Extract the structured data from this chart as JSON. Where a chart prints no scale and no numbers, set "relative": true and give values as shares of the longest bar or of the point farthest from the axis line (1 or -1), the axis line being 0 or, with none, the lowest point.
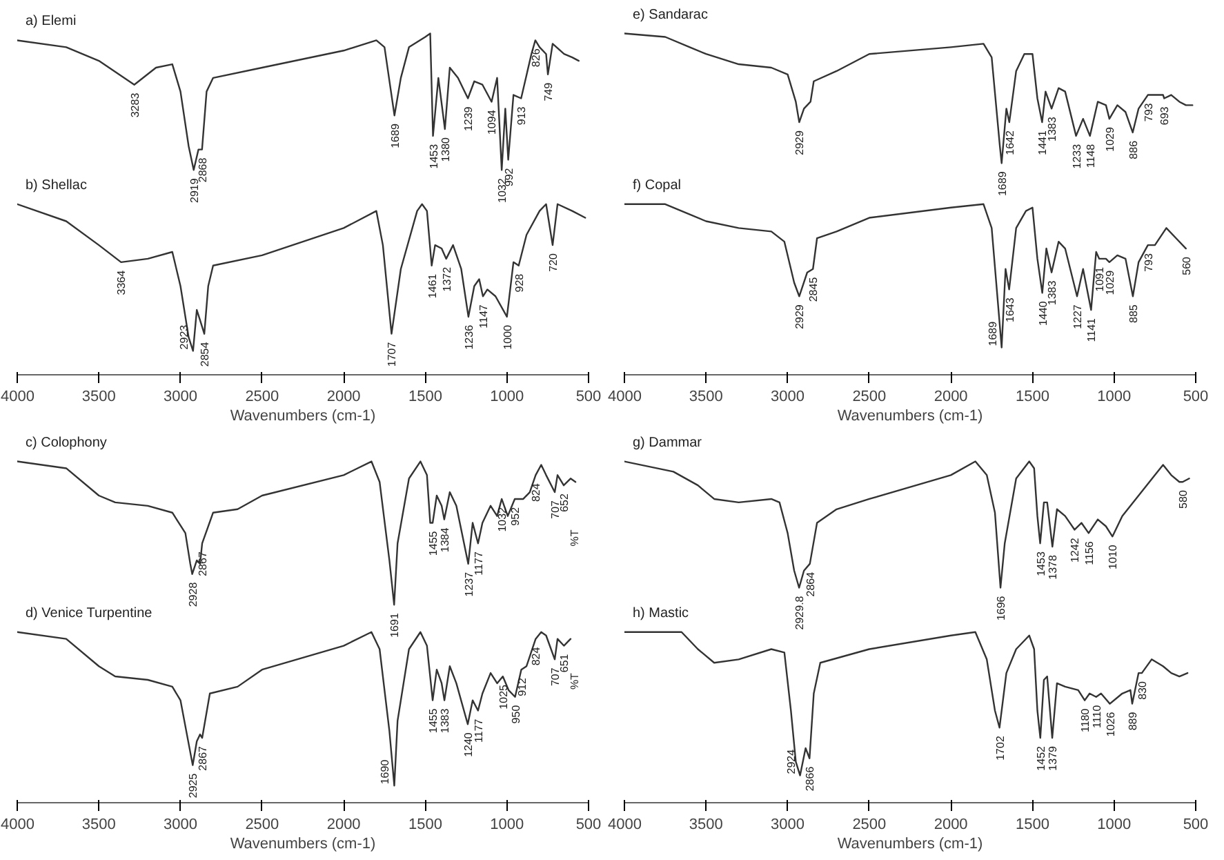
{
  "chart_data": [
    {
      "type": "line",
      "relative": true,
      "xlabel": "Wavenumbers (cm-1)",
      "xlim": [
        4000,
        500
      ],
      "xticks": [
        4000,
        3500,
        3000,
        2500,
        2000,
        1500,
        1000,
        500
      ],
      "grid": false,
      "marker": "none",
      "line_style": "solid",
      "series": [
        {
          "name": "a) Elemi",
          "color": "#333333",
          "x": [
            4000,
            3700,
            3500,
            3283,
            3150,
            3050,
            3000,
            2950,
            2919,
            2890,
            2868,
            2840,
            2800,
            2500,
            2000,
            1800,
            1750,
            1689,
            1650,
            1600,
            1500,
            1470,
            1453,
            1420,
            1380,
            1350,
            1300,
            1239,
            1200,
            1150,
            1094,
            1060,
            1032,
            1010,
            992,
            960,
            913,
            850,
            826,
            800,
            760,
            749,
            720,
            650,
            600,
            560
          ],
          "values": [
            0.98,
            0.96,
            0.92,
            0.85,
            0.9,
            0.91,
            0.83,
            0.67,
            0.6,
            0.66,
            0.66,
            0.83,
            0.87,
            0.9,
            0.95,
            0.98,
            0.96,
            0.76,
            0.87,
            0.96,
            0.99,
            1.0,
            0.7,
            0.87,
            0.72,
            0.9,
            0.87,
            0.81,
            0.86,
            0.85,
            0.8,
            0.87,
            0.6,
            0.78,
            0.63,
            0.82,
            0.81,
            0.94,
            0.98,
            0.96,
            0.94,
            0.88,
            0.97,
            0.94,
            0.93,
            0.92
          ]
        },
        {
          "name": "b) Shellac",
          "color": "#333333",
          "x": [
            4000,
            3700,
            3500,
            3364,
            3200,
            3050,
            3000,
            2950,
            2923,
            2900,
            2880,
            2854,
            2830,
            2800,
            2500,
            2000,
            1800,
            1760,
            1707,
            1650,
            1550,
            1520,
            1490,
            1461,
            1440,
            1400,
            1372,
            1330,
            1280,
            1236,
            1200,
            1170,
            1147,
            1120,
            1070,
            1000,
            960,
            928,
            880,
            800,
            760,
            720,
            690,
            600,
            520
          ],
          "values": [
            0.5,
            0.45,
            0.38,
            0.33,
            0.34,
            0.36,
            0.26,
            0.11,
            0.07,
            0.19,
            0.16,
            0.12,
            0.26,
            0.32,
            0.35,
            0.43,
            0.48,
            0.38,
            0.12,
            0.31,
            0.48,
            0.5,
            0.48,
            0.32,
            0.38,
            0.37,
            0.34,
            0.38,
            0.31,
            0.17,
            0.26,
            0.28,
            0.23,
            0.25,
            0.23,
            0.17,
            0.33,
            0.32,
            0.41,
            0.48,
            0.5,
            0.38,
            0.5,
            0.48,
            0.46
          ]
        }
      ],
      "annotations": [
        {
          "text": "3283",
          "x": 3283,
          "y": 0.85
        },
        {
          "text": "2919",
          "x": 2919,
          "y": 0.6
        },
        {
          "text": "2868",
          "x": 2868,
          "y": 0.66
        },
        {
          "text": "1689",
          "x": 1689,
          "y": 0.76
        },
        {
          "text": "1453",
          "x": 1453,
          "y": 0.7
        },
        {
          "text": "1380",
          "x": 1380,
          "y": 0.72
        },
        {
          "text": "1239",
          "x": 1239,
          "y": 0.81
        },
        {
          "text": "1094",
          "x": 1094,
          "y": 0.8
        },
        {
          "text": "1032",
          "x": 1032,
          "y": 0.6
        },
        {
          "text": "992",
          "x": 992,
          "y": 0.63
        },
        {
          "text": "913",
          "x": 913,
          "y": 0.81
        },
        {
          "text": "826",
          "x": 826,
          "y": 0.98
        },
        {
          "text": "749",
          "x": 749,
          "y": 0.88
        },
        {
          "text": "3364",
          "x": 3364,
          "y": 0.33
        },
        {
          "text": "2923",
          "x": 2923,
          "y": 0.07
        },
        {
          "text": "2854",
          "x": 2854,
          "y": 0.12
        },
        {
          "text": "1707",
          "x": 1707,
          "y": 0.12
        },
        {
          "text": "1461",
          "x": 1461,
          "y": 0.32
        },
        {
          "text": "1372",
          "x": 1372,
          "y": 0.34
        },
        {
          "text": "1236",
          "x": 1236,
          "y": 0.17
        },
        {
          "text": "1147",
          "x": 1147,
          "y": 0.23
        },
        {
          "text": "1000",
          "x": 1000,
          "y": 0.17
        },
        {
          "text": "928",
          "x": 928,
          "y": 0.32
        },
        {
          "text": "720",
          "x": 720,
          "y": 0.38
        }
      ]
    },
    {
      "type": "line",
      "relative": true,
      "xlabel": "Wavenumbers (cm-1)",
      "xlim": [
        4000,
        500
      ],
      "xticks": [
        4000,
        3500,
        3000,
        2500,
        2000,
        1500,
        1000,
        500
      ],
      "grid": false,
      "marker": "none",
      "line_style": "solid",
      "series": [
        {
          "name": "e) Sandarac",
          "color": "#333333",
          "x": [
            4000,
            3750,
            3600,
            3500,
            3300,
            3100,
            3000,
            2950,
            2929,
            2900,
            2860,
            2840,
            2700,
            2500,
            2000,
            1800,
            1750,
            1700,
            1689,
            1660,
            1642,
            1600,
            1550,
            1500,
            1470,
            1441,
            1420,
            1383,
            1340,
            1300,
            1233,
            1190,
            1148,
            1100,
            1050,
            1029,
            980,
            930,
            886,
            850,
            793,
            750,
            700,
            693,
            650,
            600,
            560,
            520
          ],
          "values": [
            1.0,
            0.99,
            0.96,
            0.94,
            0.91,
            0.9,
            0.88,
            0.8,
            0.74,
            0.78,
            0.8,
            0.86,
            0.89,
            0.94,
            0.96,
            0.97,
            0.93,
            0.67,
            0.62,
            0.78,
            0.74,
            0.89,
            0.94,
            0.94,
            0.81,
            0.74,
            0.83,
            0.78,
            0.84,
            0.83,
            0.7,
            0.75,
            0.7,
            0.8,
            0.79,
            0.75,
            0.79,
            0.77,
            0.71,
            0.78,
            0.82,
            0.82,
            0.82,
            0.81,
            0.82,
            0.8,
            0.79,
            0.79
          ]
        },
        {
          "name": "f) Copal",
          "color": "#333333",
          "x": [
            4000,
            3750,
            3600,
            3500,
            3300,
            3100,
            3020,
            2960,
            2929,
            2880,
            2845,
            2820,
            2700,
            2500,
            2000,
            1800,
            1750,
            1689,
            1665,
            1643,
            1600,
            1540,
            1500,
            1470,
            1440,
            1415,
            1383,
            1340,
            1300,
            1227,
            1190,
            1141,
            1110,
            1091,
            1050,
            1029,
            980,
            930,
            885,
            850,
            793,
            750,
            680,
            620,
            560
          ],
          "values": [
            0.5,
            0.5,
            0.47,
            0.45,
            0.43,
            0.42,
            0.39,
            0.27,
            0.23,
            0.3,
            0.31,
            0.4,
            0.42,
            0.46,
            0.49,
            0.5,
            0.43,
            0.08,
            0.31,
            0.25,
            0.43,
            0.48,
            0.49,
            0.34,
            0.24,
            0.37,
            0.3,
            0.39,
            0.37,
            0.23,
            0.31,
            0.19,
            0.36,
            0.34,
            0.34,
            0.33,
            0.35,
            0.34,
            0.23,
            0.33,
            0.38,
            0.38,
            0.43,
            0.4,
            0.37
          ]
        }
      ],
      "annotations": [
        {
          "text": "2929",
          "x": 2929,
          "y": 0.74
        },
        {
          "text": "1689",
          "x": 1689,
          "y": 0.62
        },
        {
          "text": "1642",
          "x": 1642,
          "y": 0.74
        },
        {
          "text": "1441",
          "x": 1441,
          "y": 0.74
        },
        {
          "text": "1383",
          "x": 1383,
          "y": 0.78
        },
        {
          "text": "1233",
          "x": 1233,
          "y": 0.7
        },
        {
          "text": "1148",
          "x": 1148,
          "y": 0.7
        },
        {
          "text": "1029",
          "x": 1029,
          "y": 0.75
        },
        {
          "text": "886",
          "x": 886,
          "y": 0.71
        },
        {
          "text": "793",
          "x": 793,
          "y": 0.82
        },
        {
          "text": "693",
          "x": 693,
          "y": 0.81
        },
        {
          "text": "2929",
          "x": 2929,
          "y": 0.23
        },
        {
          "text": "2845",
          "x": 2845,
          "y": 0.31
        },
        {
          "text": "1689",
          "x": 1689,
          "y": 0.08
        },
        {
          "text": "1643",
          "x": 1643,
          "y": 0.25
        },
        {
          "text": "1440",
          "x": 1440,
          "y": 0.24
        },
        {
          "text": "1383",
          "x": 1383,
          "y": 0.3
        },
        {
          "text": "1227",
          "x": 1227,
          "y": 0.23
        },
        {
          "text": "1141",
          "x": 1141,
          "y": 0.19
        },
        {
          "text": "1091",
          "x": 1091,
          "y": 0.34
        },
        {
          "text": "1029",
          "x": 1029,
          "y": 0.33
        },
        {
          "text": "885",
          "x": 885,
          "y": 0.23
        },
        {
          "text": "793",
          "x": 793,
          "y": 0.38
        },
        {
          "text": "560",
          "x": 560,
          "y": 0.37
        }
      ]
    },
    {
      "type": "line",
      "relative": true,
      "xlabel": "Wavenumbers (cm-1)",
      "xlim": [
        4000,
        500
      ],
      "xticks": [
        4000,
        3500,
        3000,
        2500,
        2000,
        1500,
        1000,
        500
      ],
      "grid": false,
      "marker": "none",
      "line_style": "solid",
      "series": [
        {
          "name": "c) Colophony",
          "color": "#333333",
          "x": [
            4000,
            3700,
            3500,
            3400,
            3200,
            3050,
            2970,
            2940,
            2928,
            2900,
            2880,
            2867,
            2800,
            2650,
            2500,
            2000,
            1830,
            1780,
            1720,
            1691,
            1670,
            1600,
            1530,
            1490,
            1470,
            1455,
            1430,
            1400,
            1384,
            1350,
            1310,
            1237,
            1210,
            1177,
            1150,
            1100,
            1060,
            1032,
            995,
            952,
            900,
            860,
            824,
            790,
            760,
            707,
            690,
            652,
            610,
            580
          ],
          "values": [
            1.0,
            0.98,
            0.9,
            0.88,
            0.87,
            0.85,
            0.79,
            0.7,
            0.67,
            0.71,
            0.7,
            0.76,
            0.85,
            0.86,
            0.9,
            0.96,
            1.0,
            0.94,
            0.71,
            0.58,
            0.76,
            0.95,
            1.0,
            0.96,
            0.82,
            0.82,
            0.9,
            0.87,
            0.83,
            0.91,
            0.87,
            0.7,
            0.82,
            0.76,
            0.82,
            0.87,
            0.84,
            0.89,
            0.84,
            0.89,
            0.89,
            0.91,
            0.96,
            0.99,
            0.96,
            0.91,
            0.96,
            0.93,
            0.95,
            0.94
          ]
        },
        {
          "name": "d) Venice Turpentine",
          "color": "#333333",
          "x": [
            4000,
            3700,
            3500,
            3400,
            3200,
            3050,
            3000,
            2925,
            2900,
            2880,
            2867,
            2820,
            2650,
            2500,
            2000,
            1830,
            1780,
            1720,
            1690,
            1670,
            1600,
            1530,
            1490,
            1455,
            1430,
            1400,
            1383,
            1350,
            1310,
            1240,
            1210,
            1177,
            1150,
            1100,
            1060,
            1025,
            990,
            950,
            912,
            880,
            824,
            790,
            760,
            707,
            690,
            651,
            610
          ],
          "values": [
            0.5,
            0.48,
            0.4,
            0.37,
            0.36,
            0.34,
            0.3,
            0.11,
            0.18,
            0.2,
            0.19,
            0.32,
            0.34,
            0.39,
            0.46,
            0.5,
            0.45,
            0.21,
            0.05,
            0.24,
            0.45,
            0.5,
            0.46,
            0.3,
            0.39,
            0.35,
            0.3,
            0.4,
            0.35,
            0.23,
            0.3,
            0.27,
            0.32,
            0.38,
            0.35,
            0.37,
            0.33,
            0.31,
            0.39,
            0.4,
            0.48,
            0.5,
            0.49,
            0.42,
            0.48,
            0.46,
            0.48
          ]
        }
      ],
      "annotations": [
        {
          "text": "2928",
          "x": 2928,
          "y": 0.67
        },
        {
          "text": "2867",
          "x": 2867,
          "y": 0.76
        },
        {
          "text": "1691",
          "x": 1691,
          "y": 0.58
        },
        {
          "text": "1455",
          "x": 1455,
          "y": 0.82
        },
        {
          "text": "1384",
          "x": 1384,
          "y": 0.83
        },
        {
          "text": "1237",
          "x": 1237,
          "y": 0.7
        },
        {
          "text": "1177",
          "x": 1177,
          "y": 0.76
        },
        {
          "text": "1032",
          "x": 1032,
          "y": 0.89
        },
        {
          "text": "952",
          "x": 952,
          "y": 0.89
        },
        {
          "text": "824",
          "x": 824,
          "y": 0.96
        },
        {
          "text": "707",
          "x": 707,
          "y": 0.91
        },
        {
          "text": "652",
          "x": 652,
          "y": 0.93
        },
        {
          "text": "2925",
          "x": 2925,
          "y": 0.11
        },
        {
          "text": "2867",
          "x": 2867,
          "y": 0.19
        },
        {
          "text": "1690",
          "x": 1690,
          "y": 0.05
        },
        {
          "text": "1455",
          "x": 1455,
          "y": 0.3
        },
        {
          "text": "1383",
          "x": 1383,
          "y": 0.3
        },
        {
          "text": "1240",
          "x": 1240,
          "y": 0.23
        },
        {
          "text": "1177",
          "x": 1177,
          "y": 0.27
        },
        {
          "text": "1025",
          "x": 1025,
          "y": 0.37
        },
        {
          "text": "950",
          "x": 950,
          "y": 0.31
        },
        {
          "text": "912",
          "x": 912,
          "y": 0.39
        },
        {
          "text": "824",
          "x": 824,
          "y": 0.48
        },
        {
          "text": "707",
          "x": 707,
          "y": 0.42
        },
        {
          "text": "651",
          "x": 651,
          "y": 0.46
        },
        "%T",
        "%T"
      ]
    },
    {
      "type": "line",
      "relative": true,
      "xlabel": "Wavenumbers (cm-1)",
      "xlim": [
        4000,
        500
      ],
      "xticks": [
        4000,
        3500,
        3000,
        2500,
        2000,
        1500,
        1000,
        500
      ],
      "grid": false,
      "marker": "none",
      "line_style": "solid",
      "series": [
        {
          "name": "g) Dammar",
          "color": "#333333",
          "x": [
            4000,
            3700,
            3550,
            3450,
            3300,
            3100,
            3050,
            3000,
            2960,
            2929.8,
            2900,
            2864,
            2820,
            2700,
            2500,
            2000,
            1850,
            1780,
            1730,
            1696,
            1670,
            1600,
            1520,
            1490,
            1470,
            1453,
            1430,
            1410,
            1378,
            1350,
            1300,
            1242,
            1200,
            1156,
            1100,
            1050,
            1010,
            950,
            850,
            750,
            700,
            650,
            600,
            580,
            540
          ],
          "values": [
            1.0,
            0.97,
            0.93,
            0.89,
            0.88,
            0.89,
            0.88,
            0.79,
            0.68,
            0.63,
            0.68,
            0.7,
            0.82,
            0.86,
            0.89,
            0.96,
            1.0,
            0.96,
            0.85,
            0.63,
            0.76,
            0.95,
            1.0,
            0.98,
            0.84,
            0.76,
            0.88,
            0.88,
            0.75,
            0.86,
            0.84,
            0.8,
            0.82,
            0.79,
            0.83,
            0.81,
            0.78,
            0.84,
            0.9,
            0.96,
            0.99,
            0.96,
            0.94,
            0.94,
            0.95
          ]
        },
        {
          "name": "h) Mastic",
          "color": "#333333",
          "x": [
            4000,
            3650,
            3550,
            3450,
            3300,
            3100,
            3020,
            2980,
            2950,
            2924,
            2890,
            2866,
            2840,
            2800,
            2500,
            2000,
            1850,
            1780,
            1730,
            1702,
            1660,
            1600,
            1520,
            1490,
            1470,
            1452,
            1430,
            1410,
            1379,
            1350,
            1300,
            1220,
            1180,
            1150,
            1110,
            1080,
            1026,
            950,
            900,
            889,
            850,
            830,
            770,
            700,
            650,
            600,
            550
          ],
          "values": [
            0.5,
            0.5,
            0.45,
            0.41,
            0.42,
            0.45,
            0.44,
            0.27,
            0.12,
            0.08,
            0.16,
            0.13,
            0.32,
            0.41,
            0.45,
            0.49,
            0.5,
            0.42,
            0.27,
            0.22,
            0.38,
            0.45,
            0.49,
            0.45,
            0.27,
            0.19,
            0.36,
            0.37,
            0.19,
            0.35,
            0.34,
            0.33,
            0.3,
            0.32,
            0.31,
            0.32,
            0.29,
            0.32,
            0.33,
            0.29,
            0.38,
            0.38,
            0.42,
            0.4,
            0.38,
            0.37,
            0.38
          ]
        }
      ],
      "annotations": [
        {
          "text": "2929.8",
          "x": 2929.8,
          "y": 0.63
        },
        {
          "text": "2864",
          "x": 2864,
          "y": 0.7
        },
        {
          "text": "1696",
          "x": 1696,
          "y": 0.63
        },
        {
          "text": "1453",
          "x": 1453,
          "y": 0.76
        },
        {
          "text": "1378",
          "x": 1378,
          "y": 0.75
        },
        {
          "text": "1242",
          "x": 1242,
          "y": 0.8
        },
        {
          "text": "1156",
          "x": 1156,
          "y": 0.79
        },
        {
          "text": "1010",
          "x": 1010,
          "y": 0.78
        },
        {
          "text": "580",
          "x": 580,
          "y": 0.94
        },
        {
          "text": "2924",
          "x": 2924,
          "y": 0.08
        },
        {
          "text": "2866",
          "x": 2866,
          "y": 0.13
        },
        {
          "text": "1702",
          "x": 1702,
          "y": 0.22
        },
        {
          "text": "1452",
          "x": 1452,
          "y": 0.19
        },
        {
          "text": "1379",
          "x": 1379,
          "y": 0.19
        },
        {
          "text": "1180",
          "x": 1180,
          "y": 0.3
        },
        {
          "text": "1110",
          "x": 1110,
          "y": 0.31
        },
        {
          "text": "1026",
          "x": 1026,
          "y": 0.29
        },
        {
          "text": "889",
          "x": 889,
          "y": 0.29
        },
        {
          "text": "830",
          "x": 830,
          "y": 0.38
        }
      ]
    }
  ]
}
